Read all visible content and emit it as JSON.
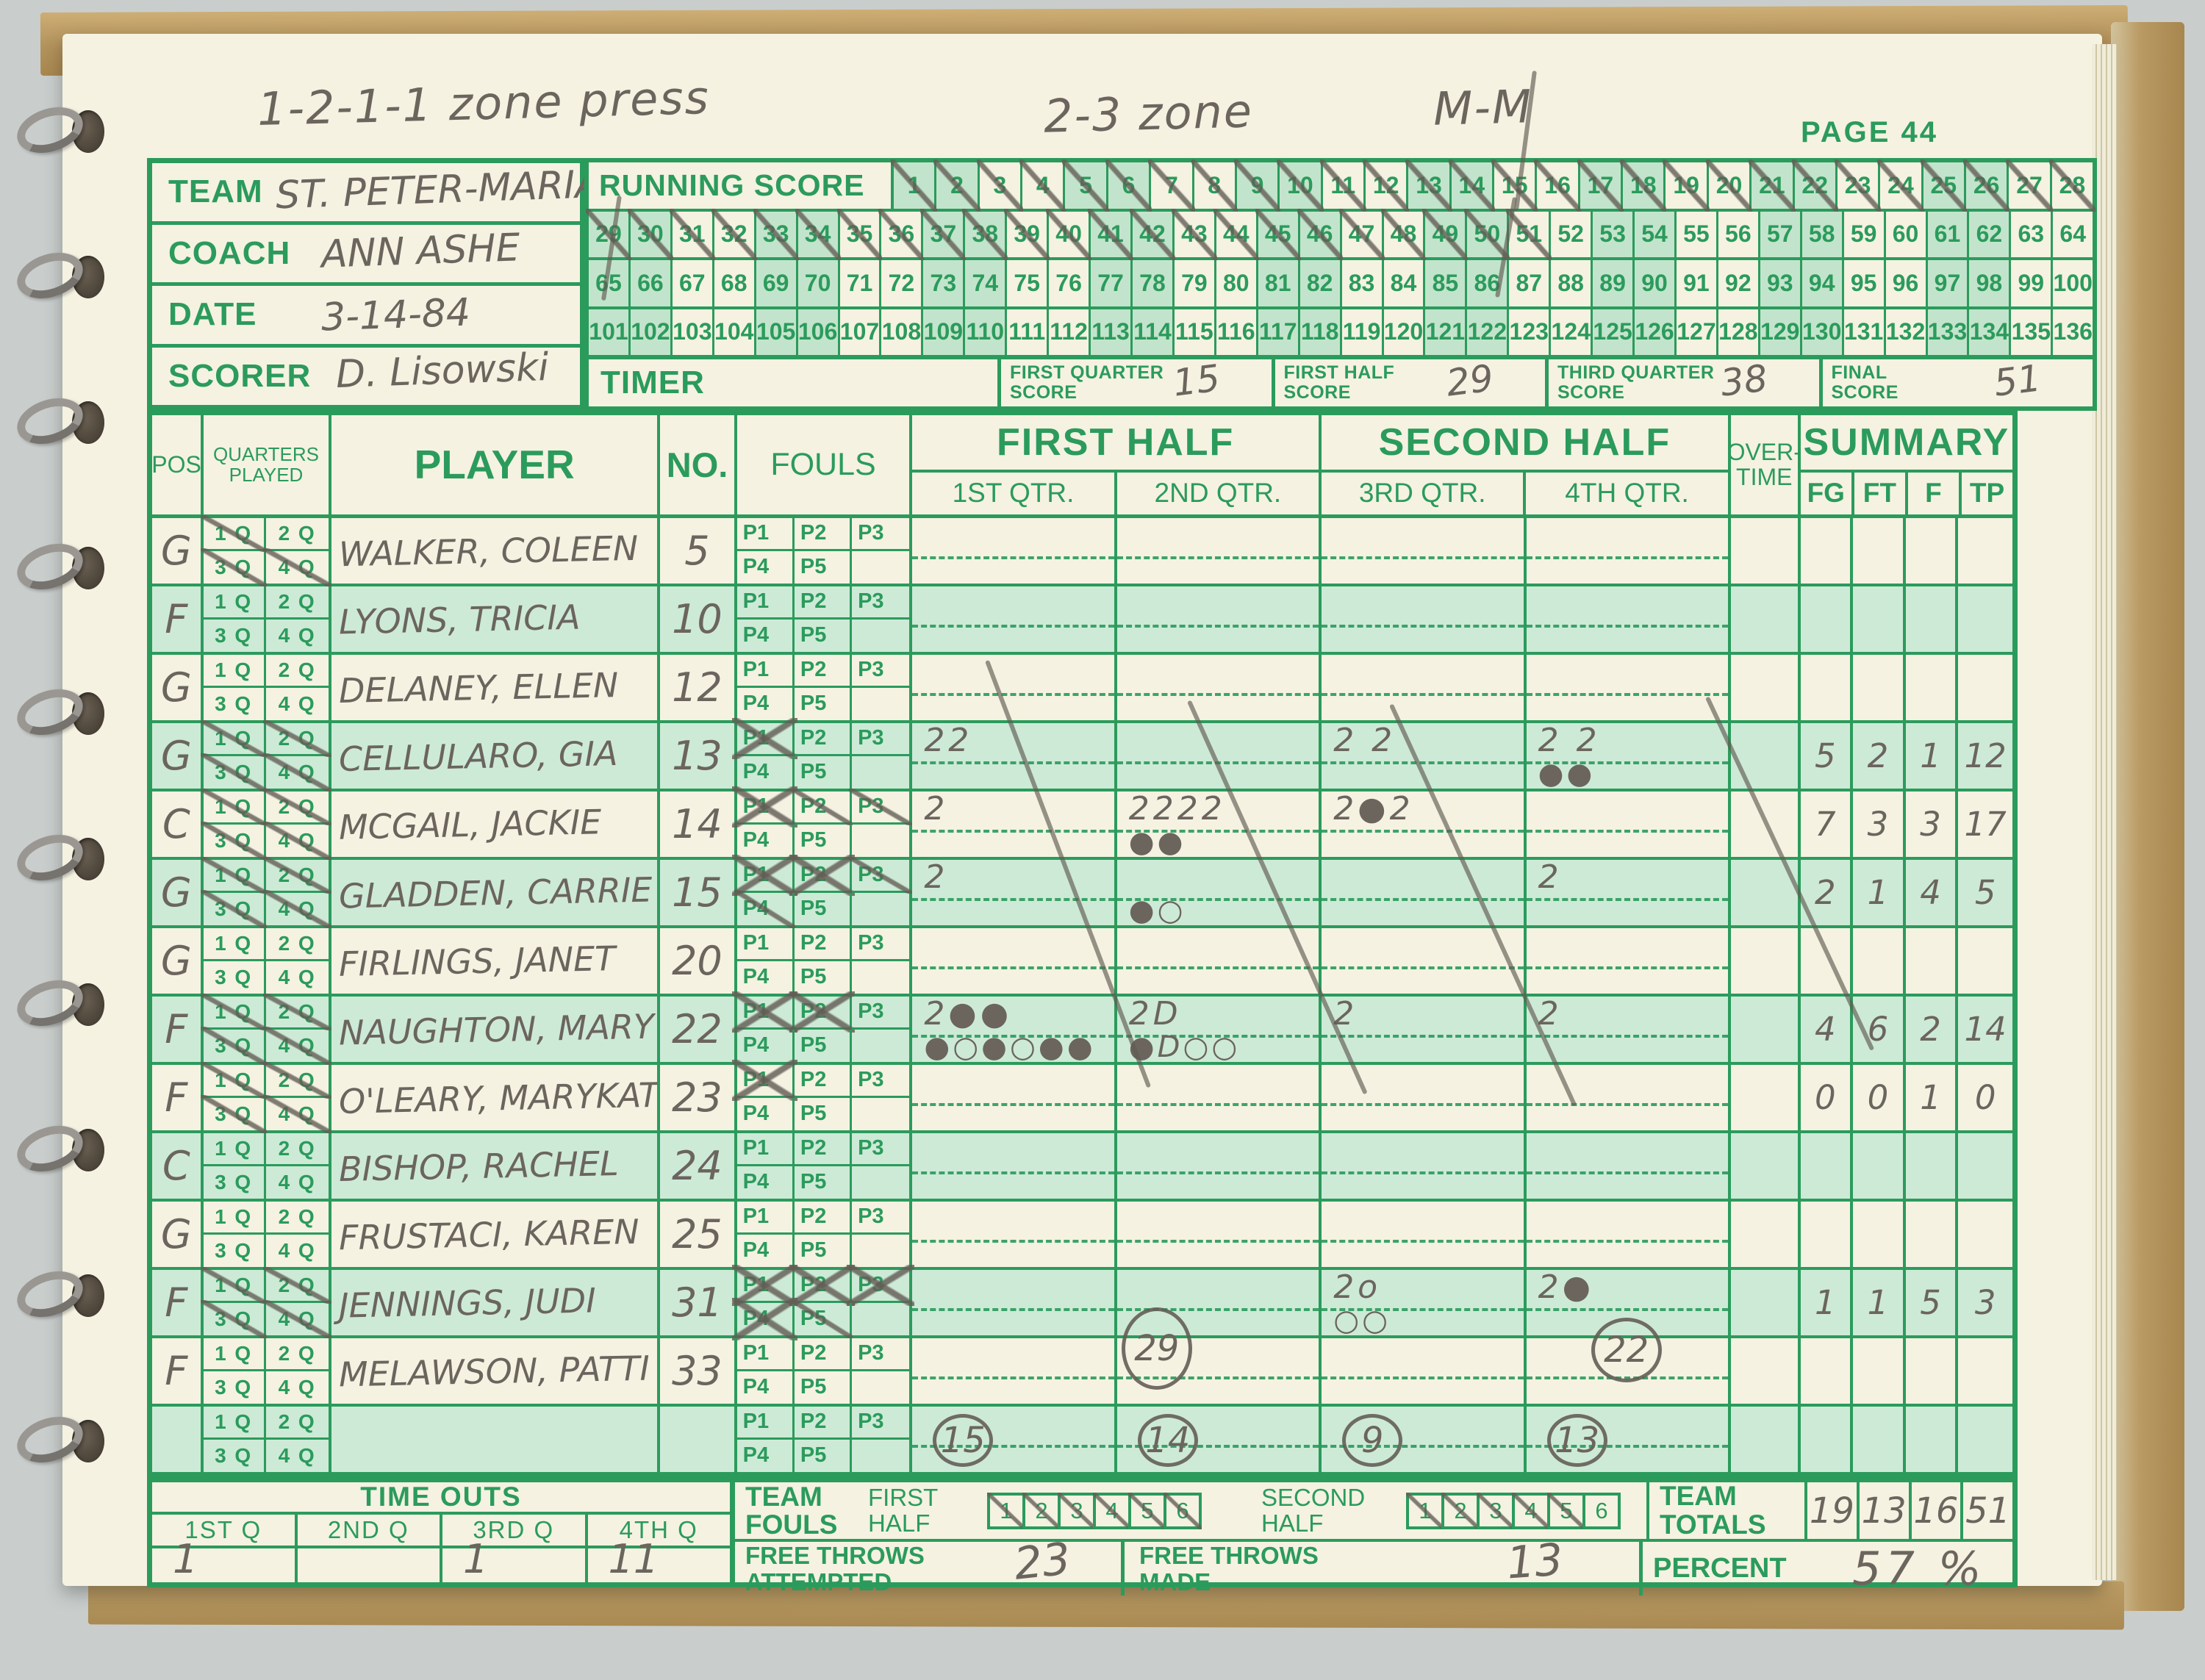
{
  "scan": {
    "annotations": {
      "left": "1-2-1-1 zone press",
      "center": "2-3 zone",
      "right": "M-M"
    },
    "page_label": "PAGE 44",
    "info_rows": [
      {
        "label": "TEAM",
        "value": "ST. PETER-MARIAN"
      },
      {
        "label": "COACH",
        "value": "ANN ASHE"
      },
      {
        "label": "DATE",
        "value": "3-14-84"
      },
      {
        "label": "SCORER",
        "value": "D. Lisowski"
      }
    ],
    "running_score": {
      "label": "RUNNING SCORE",
      "rows": [
        {
          "start": 1,
          "end": 28
        },
        {
          "start": 29,
          "end": 64
        },
        {
          "start": 65,
          "end": 100
        },
        {
          "start": 101,
          "end": 136
        }
      ],
      "crossed_through": 51
    },
    "timer": {
      "label": "TIMER",
      "scores": [
        {
          "label": "FIRST QUARTER SCORE",
          "value": "15"
        },
        {
          "label": "FIRST HALF SCORE",
          "value": "29"
        },
        {
          "label": "THIRD QUARTER SCORE",
          "value": "38"
        },
        {
          "label": "FINAL SCORE",
          "value": "51"
        }
      ]
    },
    "table": {
      "headers": {
        "pos": "POS",
        "quarters": "QUARTERS PLAYED",
        "player": "PLAYER",
        "no": "NO.",
        "fouls": "FOULS",
        "first_half": "FIRST HALF",
        "second_half": "SECOND HALF",
        "overtime": "OVER- TIME",
        "summary": "SUMMARY",
        "q1": "1ST QTR.",
        "q2": "2ND QTR.",
        "q3": "3RD QTR.",
        "q4": "4TH QTR.",
        "fg": "FG",
        "ft": "FT",
        "f": "F",
        "tp": "TP",
        "q_labels": [
          "1 Q",
          "2 Q",
          "3 Q",
          "4 Q"
        ],
        "p_labels": [
          "P1",
          "P2",
          "P3",
          "P4",
          "P5"
        ]
      },
      "players": [
        {
          "pos": "G",
          "name": "WALKER, COLEEN",
          "no": "5",
          "q": [
            1,
            0,
            1,
            1
          ],
          "f": [
            "",
            "",
            "",
            "",
            ""
          ],
          "s": {},
          "sum": [
            "",
            "",
            "",
            ""
          ]
        },
        {
          "pos": "F",
          "name": "LYONS, TRICIA",
          "no": "10",
          "q": [
            0,
            0,
            0,
            0
          ],
          "f": [
            "",
            "",
            "",
            "",
            ""
          ],
          "s": {},
          "sum": [
            "",
            "",
            "",
            ""
          ]
        },
        {
          "pos": "G",
          "name": "DELANEY, ELLEN",
          "no": "12",
          "q": [
            0,
            0,
            0,
            0
          ],
          "f": [
            "",
            "",
            "",
            "",
            ""
          ],
          "s": {},
          "sum": [
            "",
            "",
            "",
            ""
          ]
        },
        {
          "pos": "G",
          "name": "CELLULARO, GIA",
          "no": "13",
          "q": [
            1,
            1,
            1,
            1
          ],
          "f": [
            "x",
            "",
            "",
            "",
            ""
          ],
          "s": {
            "q1t": "22",
            "q3t": "2 2",
            "q4t": "2 2",
            "q4b": "●●"
          },
          "sum": [
            "5",
            "2",
            "1",
            "12"
          ]
        },
        {
          "pos": "C",
          "name": "MCGAIL, JACKIE",
          "no": "14",
          "q": [
            1,
            1,
            1,
            1
          ],
          "f": [
            "x",
            "sl",
            "sl",
            "",
            ""
          ],
          "s": {
            "q1t": "2",
            "q2t": "2222",
            "q2b": "●●",
            "q3t": "2●2"
          },
          "sum": [
            "7",
            "3",
            "3",
            "17"
          ]
        },
        {
          "pos": "G",
          "name": "GLADDEN, CARRIE",
          "no": "15",
          "q": [
            1,
            1,
            1,
            1
          ],
          "f": [
            "x",
            "x",
            "sl",
            "sl",
            ""
          ],
          "s": {
            "q1t": "2",
            "q2b": "●○",
            "q4t": "2"
          },
          "sum": [
            "2",
            "1",
            "4",
            "5"
          ]
        },
        {
          "pos": "G",
          "name": "FIRLINGS, JANET",
          "no": "20",
          "q": [
            0,
            0,
            0,
            0
          ],
          "f": [
            "",
            "",
            "",
            "",
            ""
          ],
          "s": {},
          "sum": [
            "",
            "",
            "",
            ""
          ]
        },
        {
          "pos": "F",
          "name": "NAUGHTON, MARY",
          "no": "22",
          "q": [
            1,
            1,
            1,
            1
          ],
          "f": [
            "x",
            "x",
            "",
            "",
            ""
          ],
          "s": {
            "q1t": "2●●",
            "q1b": "●○●○●●",
            "q2t": "2D",
            "q2b": "●D○○",
            "q3t": "2",
            "q4t": "2"
          },
          "sum": [
            "4",
            "6",
            "2",
            "14"
          ]
        },
        {
          "pos": "F",
          "name": "O'LEARY, MARYKATE",
          "no": "23",
          "q": [
            1,
            1,
            1,
            1
          ],
          "f": [
            "x",
            "",
            "",
            "",
            ""
          ],
          "s": {},
          "sum": [
            "0",
            "0",
            "1",
            "0"
          ]
        },
        {
          "pos": "C",
          "name": "BISHOP, RACHEL",
          "no": "24",
          "q": [
            0,
            0,
            0,
            0
          ],
          "f": [
            "",
            "",
            "",
            "",
            ""
          ],
          "s": {},
          "sum": [
            "",
            "",
            "",
            ""
          ]
        },
        {
          "pos": "G",
          "name": "FRUSTACI, KAREN",
          "no": "25",
          "q": [
            0,
            0,
            0,
            0
          ],
          "f": [
            "",
            "",
            "",
            "",
            ""
          ],
          "s": {},
          "sum": [
            "",
            "",
            "",
            ""
          ]
        },
        {
          "pos": "F",
          "name": "JENNINGS, JUDI",
          "no": "31",
          "q": [
            1,
            1,
            1,
            1
          ],
          "f": [
            "x",
            "x",
            "x",
            "x",
            "sl"
          ],
          "s": {
            "q3t": "2o",
            "q3b": "○○",
            "q4t": "2●"
          },
          "sum": [
            "1",
            "1",
            "5",
            "3"
          ]
        },
        {
          "pos": "F",
          "name": "MELAWSON, PATTI",
          "no": "33",
          "q": [
            0,
            0,
            0,
            0
          ],
          "f": [
            "",
            "",
            "",
            "",
            ""
          ],
          "s": {
            "q2c": "29",
            "q4c": "22"
          },
          "sum": [
            "",
            "",
            "",
            ""
          ]
        },
        {
          "pos": "",
          "name": "",
          "no": "",
          "q": [
            0,
            0,
            0,
            0
          ],
          "f": [
            "",
            "",
            "",
            "",
            ""
          ],
          "s": {
            "q1c": "15",
            "q2c": "14",
            "q3c": "9",
            "q4c": "13"
          },
          "sum": [
            "",
            "",
            "",
            ""
          ]
        }
      ]
    },
    "footer": {
      "timeouts": {
        "title": "TIME OUTS",
        "cols": [
          {
            "label": "1ST Q",
            "value": "1"
          },
          {
            "label": "2ND Q",
            "value": ""
          },
          {
            "label": "3RD Q",
            "value": "1"
          },
          {
            "label": "4TH Q",
            "value": "11"
          }
        ]
      },
      "team_fouls": {
        "label": "TEAM FOULS",
        "first_half_label": "FIRST HALF",
        "second_half_label": "SECOND HALF",
        "numbers": [
          1,
          2,
          3,
          4,
          5,
          6
        ],
        "first_half_crossed": 6,
        "second_half_crossed": 5
      },
      "free_throws": {
        "attempted_label": "FREE THROWS ATTEMPTED",
        "attempted_value": "23",
        "made_label": "FREE THROWS MADE",
        "made_value": "13"
      },
      "totals": {
        "label": "TEAM TOTALS",
        "values": [
          "19",
          "13",
          "16",
          "51"
        ],
        "percent_label": "PERCENT",
        "percent_value": "57 %"
      }
    }
  }
}
